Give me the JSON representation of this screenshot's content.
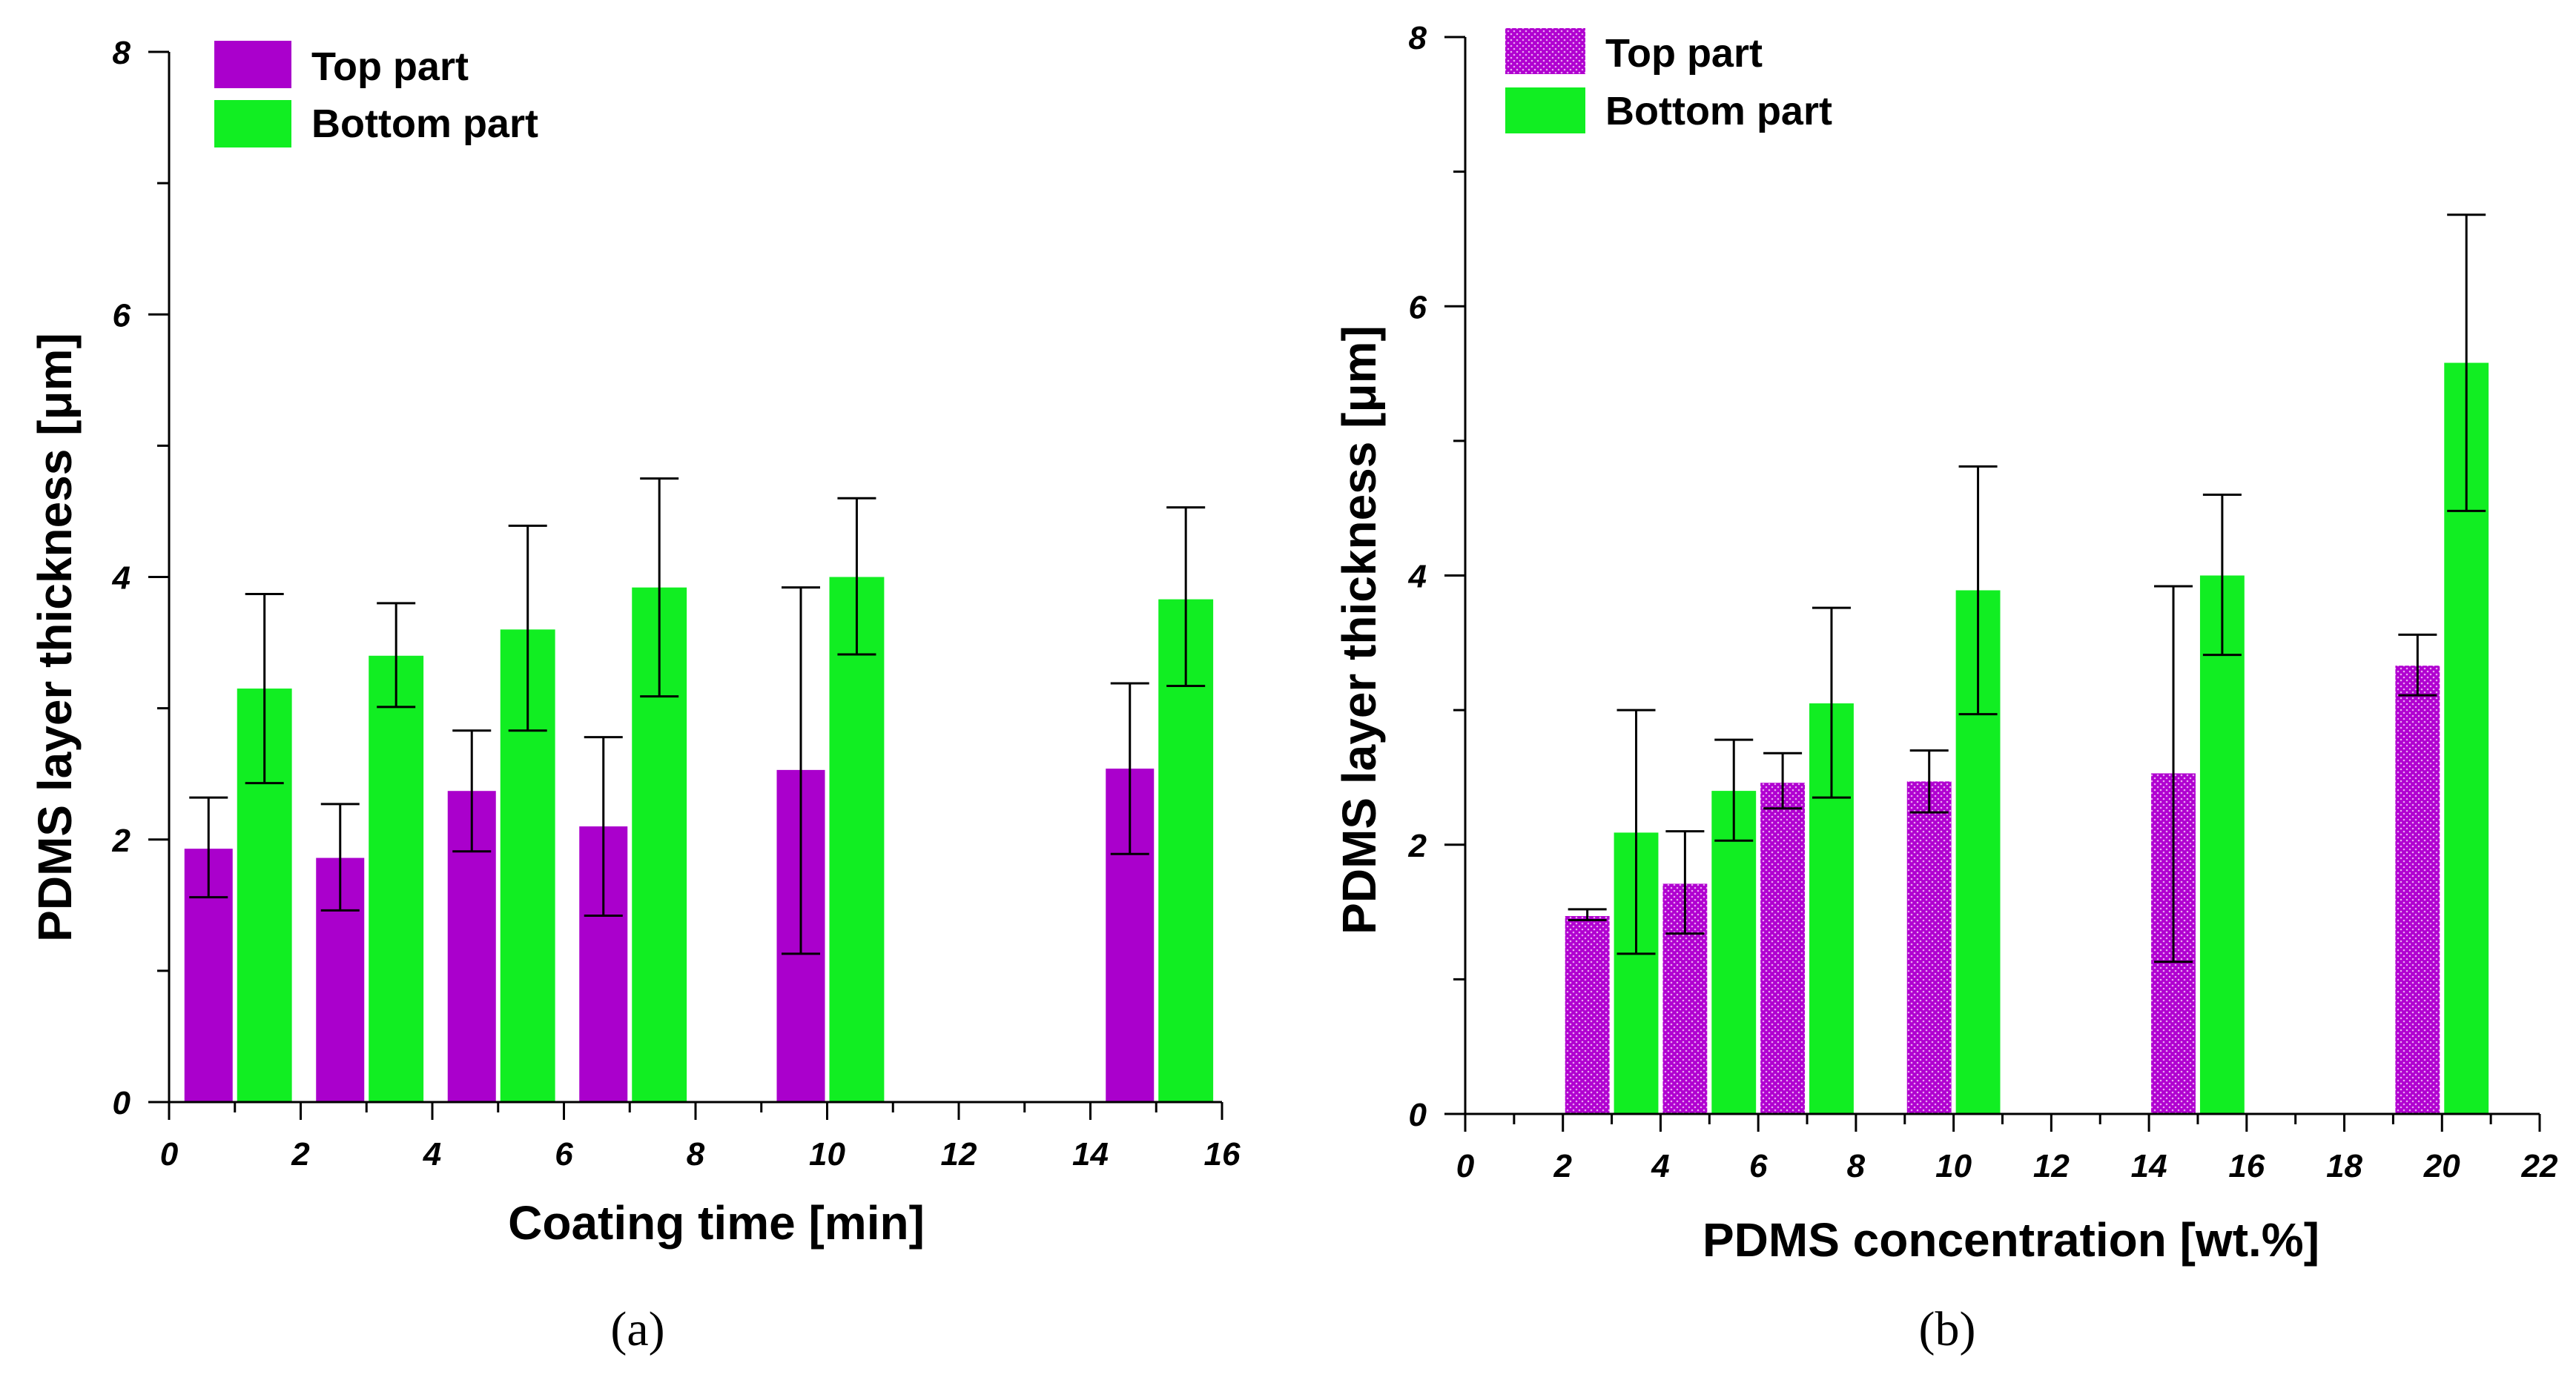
{
  "chart_data": [
    {
      "type": "bar",
      "panel_label": "(a)",
      "xlabel": "Coating time [min]",
      "ylabel": "PDMS layer thickness [μm]",
      "xlim": [
        0,
        16
      ],
      "ylim": [
        0,
        8
      ],
      "x_ticks": [
        0,
        2,
        4,
        6,
        8,
        10,
        12,
        14,
        16
      ],
      "y_ticks": [
        0,
        2,
        4,
        6,
        8
      ],
      "legend_position": "top-left",
      "series": [
        {
          "name": "Top part",
          "color": "#aa00cc",
          "pattern": "solid",
          "points": [
            {
              "x_start": 0.2,
              "x_end": 1.0,
              "value": 1.93,
              "err_low": 1.56,
              "err_high": 2.32
            },
            {
              "x_start": 2.2,
              "x_end": 3.0,
              "value": 1.86,
              "err_low": 1.46,
              "err_high": 2.27
            },
            {
              "x_start": 4.2,
              "x_end": 5.0,
              "value": 2.37,
              "err_low": 1.91,
              "err_high": 2.83
            },
            {
              "x_start": 6.2,
              "x_end": 7.0,
              "value": 2.1,
              "err_low": 1.42,
              "err_high": 2.78
            },
            {
              "x_start": 9.2,
              "x_end": 10.0,
              "value": 2.53,
              "err_low": 1.13,
              "err_high": 3.92
            },
            {
              "x_start": 14.2,
              "x_end": 15.0,
              "value": 2.54,
              "err_low": 1.89,
              "err_high": 3.19
            }
          ]
        },
        {
          "name": "Bottom part",
          "color": "#11ee22",
          "pattern": "solid",
          "points": [
            {
              "x_start": 1.0,
              "x_end": 1.9,
              "value": 3.15,
              "err_low": 2.43,
              "err_high": 3.87
            },
            {
              "x_start": 3.0,
              "x_end": 3.9,
              "value": 3.4,
              "err_low": 3.01,
              "err_high": 3.8
            },
            {
              "x_start": 5.0,
              "x_end": 5.9,
              "value": 3.6,
              "err_low": 2.83,
              "err_high": 4.39
            },
            {
              "x_start": 7.0,
              "x_end": 7.9,
              "value": 3.92,
              "err_low": 3.09,
              "err_high": 4.75
            },
            {
              "x_start": 10.0,
              "x_end": 10.9,
              "value": 4.0,
              "err_low": 3.41,
              "err_high": 4.6
            },
            {
              "x_start": 15.0,
              "x_end": 15.9,
              "value": 3.83,
              "err_low": 3.17,
              "err_high": 4.53
            }
          ]
        }
      ]
    },
    {
      "type": "bar",
      "panel_label": "(b)",
      "xlabel": "PDMS concentration [wt.%]",
      "ylabel": "PDMS layer thickness [μm]",
      "xlim": [
        0,
        22
      ],
      "ylim": [
        0,
        8
      ],
      "x_ticks": [
        0,
        2,
        4,
        6,
        8,
        10,
        12,
        14,
        16,
        18,
        20,
        22
      ],
      "y_ticks": [
        0,
        2,
        4,
        6,
        8
      ],
      "legend_position": "top-left",
      "series": [
        {
          "name": "Top part",
          "color": "#b000d0",
          "pattern": "dotted",
          "points": [
            {
              "x_start": 2.0,
              "x_end": 3.0,
              "value": 1.47,
              "err_low": 1.44,
              "err_high": 1.52
            },
            {
              "x_start": 4.0,
              "x_end": 5.0,
              "value": 1.71,
              "err_low": 1.34,
              "err_high": 2.1
            },
            {
              "x_start": 6.0,
              "x_end": 7.0,
              "value": 2.46,
              "err_low": 2.27,
              "err_high": 2.68
            },
            {
              "x_start": 9.0,
              "x_end": 10.0,
              "value": 2.47,
              "err_low": 2.24,
              "err_high": 2.7
            },
            {
              "x_start": 14.0,
              "x_end": 15.0,
              "value": 2.53,
              "err_low": 1.13,
              "err_high": 3.92
            },
            {
              "x_start": 19.0,
              "x_end": 20.0,
              "value": 3.33,
              "err_low": 3.11,
              "err_high": 3.56
            }
          ]
        },
        {
          "name": "Bottom part",
          "color": "#11ee22",
          "pattern": "solid",
          "points": [
            {
              "x_start": 3.0,
              "x_end": 4.0,
              "value": 2.09,
              "err_low": 1.19,
              "err_high": 3.0
            },
            {
              "x_start": 5.0,
              "x_end": 6.0,
              "value": 2.4,
              "err_low": 2.03,
              "err_high": 2.78
            },
            {
              "x_start": 7.0,
              "x_end": 8.0,
              "value": 3.05,
              "err_low": 2.35,
              "err_high": 3.76
            },
            {
              "x_start": 10.0,
              "x_end": 11.0,
              "value": 3.89,
              "err_low": 2.97,
              "err_high": 4.81
            },
            {
              "x_start": 15.0,
              "x_end": 16.0,
              "value": 4.0,
              "err_low": 3.41,
              "err_high": 4.6
            },
            {
              "x_start": 20.0,
              "x_end": 21.0,
              "value": 5.58,
              "err_low": 4.48,
              "err_high": 6.68
            }
          ]
        }
      ]
    }
  ]
}
